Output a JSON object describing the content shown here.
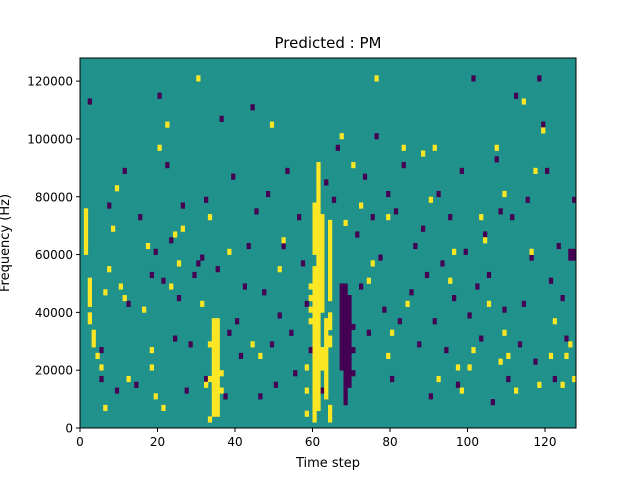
{
  "chart_data": {
    "type": "heatmap",
    "title": "Predicted : PM",
    "xlabel": "Time step",
    "ylabel": "Frequency (Hz)",
    "xlim": [
      0,
      128
    ],
    "ylim": [
      0,
      128000
    ],
    "xticks": [
      0,
      20,
      40,
      60,
      80,
      100,
      120
    ],
    "yticks": [
      0,
      20000,
      40000,
      60000,
      80000,
      100000,
      120000
    ],
    "xtick_labels": [
      "0",
      "20",
      "40",
      "60",
      "80",
      "100",
      "120"
    ],
    "ytick_labels": [
      "0",
      "20000",
      "40000",
      "60000",
      "80000",
      "100000",
      "120000"
    ],
    "grid": false,
    "colormap": "viridis",
    "value_range": [
      -1,
      1
    ],
    "colors": {
      "background": "#21918c",
      "low": "#440154",
      "high": "#fde725"
    },
    "rows": 64,
    "cols": 128,
    "cells_high": [
      [
        1,
        30
      ],
      [
        1,
        31
      ],
      [
        1,
        32
      ],
      [
        1,
        33
      ],
      [
        1,
        34
      ],
      [
        1,
        35
      ],
      [
        1,
        36
      ],
      [
        1,
        37
      ],
      [
        2,
        18
      ],
      [
        2,
        19
      ],
      [
        2,
        21
      ],
      [
        2,
        22
      ],
      [
        2,
        23
      ],
      [
        2,
        24
      ],
      [
        2,
        25
      ],
      [
        3,
        14
      ],
      [
        3,
        15
      ],
      [
        3,
        16
      ],
      [
        4,
        12
      ],
      [
        5,
        10
      ],
      [
        6,
        3
      ],
      [
        6,
        23
      ],
      [
        7,
        27
      ],
      [
        8,
        34
      ],
      [
        9,
        41
      ],
      [
        10,
        24
      ],
      [
        11,
        22
      ],
      [
        12,
        8
      ],
      [
        16,
        20
      ],
      [
        17,
        31
      ],
      [
        18,
        10
      ],
      [
        18,
        13
      ],
      [
        19,
        5
      ],
      [
        20,
        48
      ],
      [
        21,
        3
      ],
      [
        22,
        52
      ],
      [
        23,
        24
      ],
      [
        24,
        33
      ],
      [
        25,
        28
      ],
      [
        26,
        34
      ],
      [
        30,
        60
      ],
      [
        31,
        21
      ],
      [
        32,
        7
      ],
      [
        33,
        8
      ],
      [
        33,
        14
      ],
      [
        33,
        36
      ],
      [
        33,
        1
      ],
      [
        34,
        2
      ],
      [
        34,
        3
      ],
      [
        34,
        4
      ],
      [
        34,
        5
      ],
      [
        34,
        6
      ],
      [
        34,
        7
      ],
      [
        34,
        8
      ],
      [
        34,
        9
      ],
      [
        34,
        10
      ],
      [
        34,
        11
      ],
      [
        34,
        12
      ],
      [
        34,
        13
      ],
      [
        34,
        14
      ],
      [
        34,
        15
      ],
      [
        34,
        16
      ],
      [
        34,
        17
      ],
      [
        34,
        18
      ],
      [
        35,
        2
      ],
      [
        35,
        3
      ],
      [
        35,
        4
      ],
      [
        35,
        5
      ],
      [
        35,
        6
      ],
      [
        35,
        7
      ],
      [
        35,
        8
      ],
      [
        35,
        9
      ],
      [
        35,
        10
      ],
      [
        35,
        11
      ],
      [
        35,
        12
      ],
      [
        35,
        13
      ],
      [
        35,
        14
      ],
      [
        35,
        15
      ],
      [
        35,
        16
      ],
      [
        35,
        17
      ],
      [
        35,
        18
      ],
      [
        36,
        6
      ],
      [
        36,
        9
      ],
      [
        38,
        30
      ],
      [
        44,
        14
      ],
      [
        46,
        12
      ],
      [
        49,
        52
      ],
      [
        51,
        27
      ],
      [
        52,
        32
      ],
      [
        58,
        2
      ],
      [
        58,
        6
      ],
      [
        58,
        10
      ],
      [
        59,
        18
      ],
      [
        59,
        20
      ],
      [
        59,
        22
      ],
      [
        59,
        24
      ],
      [
        60,
        1
      ],
      [
        60,
        2
      ],
      [
        60,
        3
      ],
      [
        60,
        4
      ],
      [
        60,
        5
      ],
      [
        60,
        6
      ],
      [
        60,
        7
      ],
      [
        60,
        8
      ],
      [
        60,
        9
      ],
      [
        60,
        10
      ],
      [
        60,
        11
      ],
      [
        60,
        12
      ],
      [
        60,
        13
      ],
      [
        60,
        14
      ],
      [
        60,
        15
      ],
      [
        60,
        16
      ],
      [
        60,
        17
      ],
      [
        60,
        18
      ],
      [
        60,
        19
      ],
      [
        60,
        20
      ],
      [
        60,
        21
      ],
      [
        60,
        22
      ],
      [
        60,
        23
      ],
      [
        60,
        24
      ],
      [
        60,
        25
      ],
      [
        60,
        26
      ],
      [
        60,
        27
      ],
      [
        60,
        30
      ],
      [
        60,
        31
      ],
      [
        60,
        32
      ],
      [
        60,
        33
      ],
      [
        60,
        34
      ],
      [
        60,
        35
      ],
      [
        60,
        36
      ],
      [
        60,
        37
      ],
      [
        60,
        38
      ],
      [
        61,
        3
      ],
      [
        61,
        4
      ],
      [
        61,
        5
      ],
      [
        61,
        6
      ],
      [
        61,
        7
      ],
      [
        61,
        8
      ],
      [
        61,
        9
      ],
      [
        61,
        10
      ],
      [
        61,
        11
      ],
      [
        61,
        12
      ],
      [
        61,
        13
      ],
      [
        61,
        14
      ],
      [
        61,
        15
      ],
      [
        61,
        16
      ],
      [
        61,
        17
      ],
      [
        61,
        18
      ],
      [
        61,
        19
      ],
      [
        61,
        20
      ],
      [
        61,
        21
      ],
      [
        61,
        22
      ],
      [
        61,
        23
      ],
      [
        61,
        24
      ],
      [
        61,
        25
      ],
      [
        61,
        26
      ],
      [
        61,
        27
      ],
      [
        61,
        28
      ],
      [
        61,
        29
      ],
      [
        61,
        30
      ],
      [
        61,
        31
      ],
      [
        61,
        32
      ],
      [
        61,
        33
      ],
      [
        61,
        34
      ],
      [
        61,
        35
      ],
      [
        61,
        36
      ],
      [
        61,
        37
      ],
      [
        61,
        38
      ],
      [
        61,
        39
      ],
      [
        61,
        40
      ],
      [
        61,
        41
      ],
      [
        61,
        42
      ],
      [
        61,
        43
      ],
      [
        61,
        44
      ],
      [
        61,
        45
      ],
      [
        62,
        10
      ],
      [
        62,
        11
      ],
      [
        62,
        12
      ],
      [
        62,
        13
      ],
      [
        62,
        20
      ],
      [
        62,
        21
      ],
      [
        62,
        22
      ],
      [
        62,
        23
      ],
      [
        62,
        24
      ],
      [
        62,
        25
      ],
      [
        62,
        26
      ],
      [
        62,
        27
      ],
      [
        62,
        28
      ],
      [
        62,
        29
      ],
      [
        62,
        30
      ],
      [
        62,
        31
      ],
      [
        62,
        32
      ],
      [
        62,
        33
      ],
      [
        62,
        34
      ],
      [
        62,
        35
      ],
      [
        62,
        36
      ],
      [
        63,
        5
      ],
      [
        63,
        6
      ],
      [
        63,
        7
      ],
      [
        63,
        8
      ],
      [
        63,
        9
      ],
      [
        63,
        10
      ],
      [
        63,
        11
      ],
      [
        63,
        12
      ],
      [
        63,
        13
      ],
      [
        63,
        14
      ],
      [
        63,
        15
      ],
      [
        63,
        16
      ],
      [
        63,
        17
      ],
      [
        63,
        18
      ],
      [
        64,
        1
      ],
      [
        64,
        2
      ],
      [
        64,
        3
      ],
      [
        64,
        14
      ],
      [
        64,
        15
      ],
      [
        64,
        17
      ],
      [
        64,
        18
      ],
      [
        64,
        19
      ],
      [
        64,
        22
      ],
      [
        64,
        23
      ],
      [
        64,
        24
      ],
      [
        64,
        25
      ],
      [
        64,
        26
      ],
      [
        64,
        27
      ],
      [
        64,
        28
      ],
      [
        64,
        29
      ],
      [
        64,
        30
      ],
      [
        64,
        31
      ],
      [
        64,
        32
      ],
      [
        64,
        33
      ],
      [
        64,
        34
      ],
      [
        64,
        35
      ],
      [
        67,
        50
      ],
      [
        68,
        35
      ],
      [
        70,
        45
      ],
      [
        72,
        38
      ],
      [
        74,
        25
      ],
      [
        75,
        28
      ],
      [
        76,
        60
      ],
      [
        79,
        12
      ],
      [
        79,
        36
      ],
      [
        80,
        16
      ],
      [
        83,
        48
      ],
      [
        84,
        21
      ],
      [
        88,
        47
      ],
      [
        90,
        39
      ],
      [
        91,
        48
      ],
      [
        92,
        8
      ],
      [
        95,
        25
      ],
      [
        96,
        30
      ],
      [
        97,
        10
      ],
      [
        98,
        6
      ],
      [
        100,
        10
      ],
      [
        101,
        13
      ],
      [
        103,
        36
      ],
      [
        104,
        32
      ],
      [
        105,
        21
      ],
      [
        107,
        48
      ],
      [
        108,
        11
      ],
      [
        109,
        16
      ],
      [
        109,
        40
      ],
      [
        110,
        12
      ],
      [
        112,
        6
      ],
      [
        114,
        56
      ],
      [
        116,
        30
      ],
      [
        117,
        44
      ],
      [
        118,
        7
      ],
      [
        119,
        51
      ],
      [
        121,
        12
      ],
      [
        122,
        18
      ],
      [
        124,
        7
      ],
      [
        125,
        12
      ],
      [
        126,
        14
      ],
      [
        127,
        8
      ]
    ],
    "cells_low": [
      [
        2,
        56
      ],
      [
        5,
        8
      ],
      [
        5,
        13
      ],
      [
        7,
        38
      ],
      [
        9,
        6
      ],
      [
        11,
        44
      ],
      [
        12,
        21
      ],
      [
        14,
        7
      ],
      [
        15,
        36
      ],
      [
        18,
        26
      ],
      [
        19,
        30
      ],
      [
        20,
        57
      ],
      [
        21,
        25
      ],
      [
        22,
        45
      ],
      [
        23,
        32
      ],
      [
        24,
        15
      ],
      [
        25,
        22
      ],
      [
        26,
        38
      ],
      [
        27,
        6
      ],
      [
        28,
        14
      ],
      [
        29,
        26
      ],
      [
        30,
        28
      ],
      [
        31,
        29
      ],
      [
        32,
        8
      ],
      [
        32,
        39
      ],
      [
        35,
        27
      ],
      [
        36,
        53
      ],
      [
        37,
        5
      ],
      [
        38,
        16
      ],
      [
        39,
        43
      ],
      [
        40,
        18
      ],
      [
        41,
        12
      ],
      [
        42,
        24
      ],
      [
        43,
        31
      ],
      [
        44,
        55
      ],
      [
        45,
        37
      ],
      [
        46,
        5
      ],
      [
        47,
        23
      ],
      [
        48,
        40
      ],
      [
        49,
        14
      ],
      [
        50,
        7
      ],
      [
        51,
        19
      ],
      [
        52,
        31
      ],
      [
        53,
        44
      ],
      [
        54,
        16
      ],
      [
        55,
        9
      ],
      [
        56,
        36
      ],
      [
        57,
        28
      ],
      [
        58,
        21
      ],
      [
        59,
        13
      ],
      [
        62,
        6
      ],
      [
        63,
        42
      ],
      [
        64,
        2
      ],
      [
        65,
        39
      ],
      [
        66,
        48
      ],
      [
        67,
        10
      ],
      [
        67,
        11
      ],
      [
        67,
        12
      ],
      [
        67,
        13
      ],
      [
        67,
        14
      ],
      [
        67,
        15
      ],
      [
        67,
        16
      ],
      [
        67,
        17
      ],
      [
        67,
        18
      ],
      [
        67,
        19
      ],
      [
        67,
        20
      ],
      [
        67,
        21
      ],
      [
        67,
        22
      ],
      [
        67,
        23
      ],
      [
        67,
        24
      ],
      [
        68,
        4
      ],
      [
        68,
        5
      ],
      [
        68,
        6
      ],
      [
        68,
        7
      ],
      [
        68,
        8
      ],
      [
        68,
        9
      ],
      [
        68,
        10
      ],
      [
        68,
        11
      ],
      [
        68,
        12
      ],
      [
        68,
        13
      ],
      [
        68,
        14
      ],
      [
        68,
        15
      ],
      [
        68,
        16
      ],
      [
        68,
        17
      ],
      [
        68,
        18
      ],
      [
        68,
        19
      ],
      [
        68,
        20
      ],
      [
        68,
        21
      ],
      [
        68,
        22
      ],
      [
        68,
        23
      ],
      [
        68,
        24
      ],
      [
        69,
        7
      ],
      [
        69,
        8
      ],
      [
        69,
        9
      ],
      [
        69,
        10
      ],
      [
        69,
        11
      ],
      [
        69,
        12
      ],
      [
        69,
        13
      ],
      [
        69,
        14
      ],
      [
        69,
        15
      ],
      [
        69,
        16
      ],
      [
        69,
        17
      ],
      [
        69,
        18
      ],
      [
        69,
        19
      ],
      [
        69,
        20
      ],
      [
        69,
        21
      ],
      [
        69,
        22
      ],
      [
        70,
        9
      ],
      [
        70,
        13
      ],
      [
        70,
        17
      ],
      [
        71,
        33
      ],
      [
        72,
        24
      ],
      [
        73,
        43
      ],
      [
        74,
        16
      ],
      [
        75,
        36
      ],
      [
        76,
        50
      ],
      [
        77,
        29
      ],
      [
        78,
        20
      ],
      [
        79,
        40
      ],
      [
        80,
        8
      ],
      [
        81,
        37
      ],
      [
        82,
        18
      ],
      [
        83,
        45
      ],
      [
        85,
        23
      ],
      [
        86,
        31
      ],
      [
        87,
        14
      ],
      [
        88,
        34
      ],
      [
        89,
        26
      ],
      [
        90,
        5
      ],
      [
        91,
        18
      ],
      [
        92,
        40
      ],
      [
        93,
        28
      ],
      [
        94,
        13
      ],
      [
        95,
        36
      ],
      [
        96,
        22
      ],
      [
        97,
        7
      ],
      [
        98,
        44
      ],
      [
        99,
        30
      ],
      [
        100,
        19
      ],
      [
        101,
        60
      ],
      [
        102,
        24
      ],
      [
        103,
        15
      ],
      [
        104,
        33
      ],
      [
        105,
        26
      ],
      [
        106,
        4
      ],
      [
        107,
        46
      ],
      [
        108,
        37
      ],
      [
        109,
        20
      ],
      [
        110,
        8
      ],
      [
        111,
        36
      ],
      [
        112,
        57
      ],
      [
        113,
        14
      ],
      [
        114,
        21
      ],
      [
        115,
        39
      ],
      [
        116,
        29
      ],
      [
        117,
        11
      ],
      [
        118,
        60
      ],
      [
        119,
        52
      ],
      [
        120,
        44
      ],
      [
        121,
        25
      ],
      [
        122,
        8
      ],
      [
        123,
        31
      ],
      [
        124,
        22
      ],
      [
        125,
        15
      ],
      [
        126,
        29
      ],
      [
        126,
        30
      ],
      [
        127,
        29
      ],
      [
        127,
        30
      ],
      [
        127,
        39
      ]
    ]
  }
}
